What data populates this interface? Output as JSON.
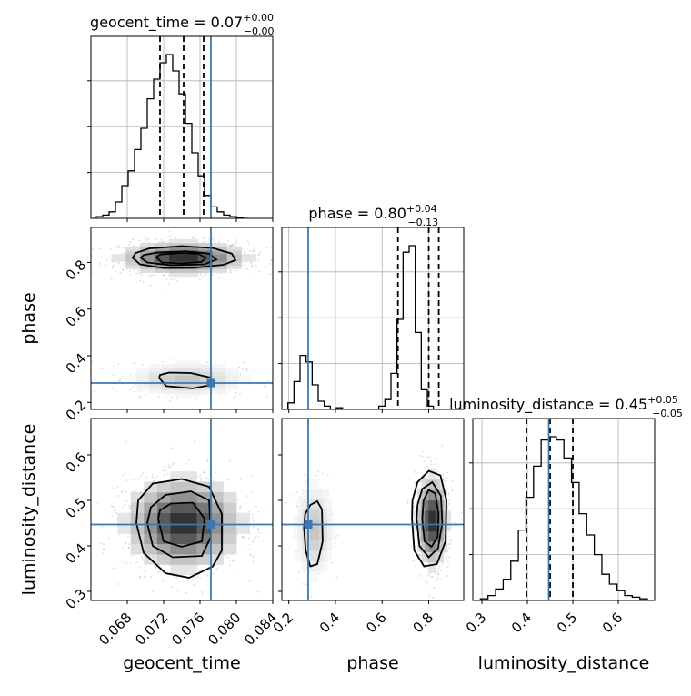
{
  "chart_data": {
    "type": "corner",
    "parameters": [
      {
        "key": "geocent_time",
        "label": "geocent_time",
        "range": [
          0.064,
          0.084
        ],
        "ticks": [
          0.068,
          0.072,
          0.076,
          0.08,
          0.084
        ],
        "tick_labels": [
          "0.068",
          "0.072",
          "0.076",
          "0.080",
          "0.084"
        ],
        "truth": 0.0772,
        "quantiles": [
          0.0716,
          0.0742,
          0.0764
        ],
        "title": {
          "prefix": "geocent_time = 0.07",
          "upper": "+0.00",
          "lower": "−0.00"
        }
      },
      {
        "key": "phase",
        "label": "phase",
        "range": [
          0.17,
          0.95
        ],
        "ticks": [
          0.2,
          0.4,
          0.6,
          0.8
        ],
        "tick_labels": [
          "0.2",
          "0.4",
          "0.6",
          "0.8"
        ],
        "truth": 0.283,
        "quantiles": [
          0.668,
          0.8,
          0.843
        ],
        "title": {
          "prefix": "phase = 0.80",
          "upper": "+0.04",
          "lower": "−0.13"
        }
      },
      {
        "key": "luminosity_distance",
        "label": "luminosity_distance",
        "range": [
          0.28,
          0.68
        ],
        "ticks": [
          0.3,
          0.4,
          0.5,
          0.6
        ],
        "tick_labels": [
          "0.3",
          "0.4",
          "0.5",
          "0.6"
        ],
        "truth": 0.447,
        "quantiles": [
          0.398,
          0.45,
          0.5
        ],
        "title": {
          "prefix": "luminosity_distance = 0.45",
          "upper": "+0.05",
          "lower": "−0.05"
        }
      }
    ],
    "histograms": [
      {
        "param": "geocent_time",
        "edges_start": 0.0646,
        "bin_width": 0.0007,
        "counts": [
          0.01,
          0.02,
          0.04,
          0.1,
          0.2,
          0.29,
          0.42,
          0.55,
          0.73,
          0.85,
          0.95,
          1.0,
          0.9,
          0.76,
          0.58,
          0.4,
          0.26,
          0.14,
          0.07,
          0.04,
          0.02,
          0.01,
          0.005,
          0.0
        ]
      },
      {
        "param": "phase",
        "edges_start": 0.17,
        "bin_width": 0.026,
        "counts": [
          0.0,
          0.04,
          0.17,
          0.33,
          0.29,
          0.15,
          0.05,
          0.02,
          0.0,
          0.01,
          0.0,
          0.0,
          0.0,
          0.0,
          0.0,
          0.0,
          0.02,
          0.06,
          0.22,
          0.55,
          0.96,
          1.0,
          0.47,
          0.12,
          0.02,
          0.0
        ]
      },
      {
        "param": "luminosity_distance",
        "edges_start": 0.28,
        "bin_width": 0.0167,
        "counts": [
          0.0,
          0.01,
          0.03,
          0.07,
          0.13,
          0.24,
          0.43,
          0.63,
          0.82,
          0.98,
          1.0,
          0.98,
          0.87,
          0.72,
          0.53,
          0.4,
          0.28,
          0.16,
          0.1,
          0.06,
          0.03,
          0.02,
          0.01,
          0.0
        ]
      }
    ],
    "pairs": [
      {
        "x": "geocent_time",
        "y": "phase",
        "modes": [
          {
            "mean": [
              0.0742,
              0.82
            ],
            "sd": [
              0.0035,
              0.035
            ],
            "n": 1400
          },
          {
            "mean": [
              0.0746,
              0.3
            ],
            "sd": [
              0.0031,
              0.035
            ],
            "n": 500
          }
        ],
        "contours": [
          [
            [
              0.0686,
              0.82
            ],
            [
              0.0694,
              0.792
            ],
            [
              0.072,
              0.776
            ],
            [
              0.0752,
              0.777
            ],
            [
              0.0786,
              0.79
            ],
            [
              0.0799,
              0.81
            ],
            [
              0.0795,
              0.838
            ],
            [
              0.0774,
              0.862
            ],
            [
              0.074,
              0.87
            ],
            [
              0.0704,
              0.86
            ],
            [
              0.0689,
              0.84
            ],
            [
              0.0686,
              0.82
            ]
          ],
          [
            [
              0.0695,
              0.82
            ],
            [
              0.0702,
              0.8
            ],
            [
              0.0728,
              0.788
            ],
            [
              0.0765,
              0.792
            ],
            [
              0.0778,
              0.812
            ],
            [
              0.077,
              0.838
            ],
            [
              0.0744,
              0.848
            ],
            [
              0.0712,
              0.842
            ],
            [
              0.0698,
              0.832
            ],
            [
              0.0695,
              0.82
            ]
          ],
          [
            [
              0.0712,
              0.822
            ],
            [
              0.0718,
              0.8
            ],
            [
              0.074,
              0.796
            ],
            [
              0.0762,
              0.802
            ],
            [
              0.0766,
              0.82
            ],
            [
              0.0758,
              0.838
            ],
            [
              0.0736,
              0.84
            ],
            [
              0.0716,
              0.834
            ],
            [
              0.0712,
              0.822
            ]
          ],
          [
            [
              0.0715,
              0.305
            ],
            [
              0.0723,
              0.27
            ],
            [
              0.0752,
              0.26
            ],
            [
              0.0772,
              0.275
            ],
            [
              0.0772,
              0.306
            ],
            [
              0.075,
              0.326
            ],
            [
              0.0726,
              0.328
            ],
            [
              0.0716,
              0.318
            ],
            [
              0.0715,
              0.305
            ]
          ]
        ]
      },
      {
        "x": "geocent_time",
        "y": "luminosity_distance",
        "modes": [
          {
            "mean": [
              0.0742,
              0.45
            ],
            "sd": [
              0.0032,
              0.05
            ],
            "n": 1800
          }
        ],
        "contours": [
          [
            [
              0.069,
              0.45
            ],
            [
              0.0698,
              0.385
            ],
            [
              0.0722,
              0.34
            ],
            [
              0.0748,
              0.33
            ],
            [
              0.0774,
              0.355
            ],
            [
              0.0784,
              0.39
            ],
            [
              0.0784,
              0.47
            ],
            [
              0.077,
              0.53
            ],
            [
              0.074,
              0.547
            ],
            [
              0.0708,
              0.537
            ],
            [
              0.0692,
              0.5
            ],
            [
              0.069,
              0.45
            ]
          ],
          [
            [
              0.0702,
              0.45
            ],
            [
              0.0708,
              0.4
            ],
            [
              0.073,
              0.375
            ],
            [
              0.0762,
              0.378
            ],
            [
              0.0772,
              0.42
            ],
            [
              0.077,
              0.5
            ],
            [
              0.075,
              0.52
            ],
            [
              0.0722,
              0.512
            ],
            [
              0.0706,
              0.485
            ],
            [
              0.0702,
              0.45
            ]
          ],
          [
            [
              0.0714,
              0.46
            ],
            [
              0.072,
              0.41
            ],
            [
              0.074,
              0.398
            ],
            [
              0.0762,
              0.41
            ],
            [
              0.0765,
              0.46
            ],
            [
              0.0752,
              0.495
            ],
            [
              0.0728,
              0.493
            ],
            [
              0.0716,
              0.478
            ],
            [
              0.0714,
              0.46
            ]
          ]
        ]
      },
      {
        "x": "phase",
        "y": "luminosity_distance",
        "modes": [
          {
            "mean": [
              0.815,
              0.455
            ],
            "sd": [
              0.035,
              0.05
            ],
            "n": 1200
          },
          {
            "mean": [
              0.31,
              0.435
            ],
            "sd": [
              0.04,
              0.05
            ],
            "n": 350
          }
        ],
        "contours": [
          [
            [
              0.728,
              0.46
            ],
            [
              0.738,
              0.39
            ],
            [
              0.78,
              0.355
            ],
            [
              0.835,
              0.36
            ],
            [
              0.872,
              0.41
            ],
            [
              0.876,
              0.5
            ],
            [
              0.85,
              0.555
            ],
            [
              0.8,
              0.565
            ],
            [
              0.752,
              0.54
            ],
            [
              0.73,
              0.5
            ],
            [
              0.728,
              0.46
            ]
          ],
          [
            [
              0.748,
              0.46
            ],
            [
              0.76,
              0.4
            ],
            [
              0.8,
              0.375
            ],
            [
              0.84,
              0.395
            ],
            [
              0.858,
              0.45
            ],
            [
              0.852,
              0.51
            ],
            [
              0.815,
              0.54
            ],
            [
              0.772,
              0.525
            ],
            [
              0.752,
              0.49
            ],
            [
              0.748,
              0.46
            ]
          ],
          [
            [
              0.772,
              0.46
            ],
            [
              0.782,
              0.41
            ],
            [
              0.812,
              0.398
            ],
            [
              0.838,
              0.42
            ],
            [
              0.842,
              0.47
            ],
            [
              0.828,
              0.515
            ],
            [
              0.8,
              0.523
            ],
            [
              0.778,
              0.5
            ],
            [
              0.772,
              0.46
            ]
          ],
          [
            [
              0.265,
              0.44
            ],
            [
              0.272,
              0.39
            ],
            [
              0.292,
              0.355
            ],
            [
              0.322,
              0.36
            ],
            [
              0.345,
              0.41
            ],
            [
              0.342,
              0.48
            ],
            [
              0.322,
              0.498
            ],
            [
              0.292,
              0.49
            ],
            [
              0.27,
              0.47
            ],
            [
              0.265,
              0.44
            ]
          ]
        ]
      }
    ]
  }
}
